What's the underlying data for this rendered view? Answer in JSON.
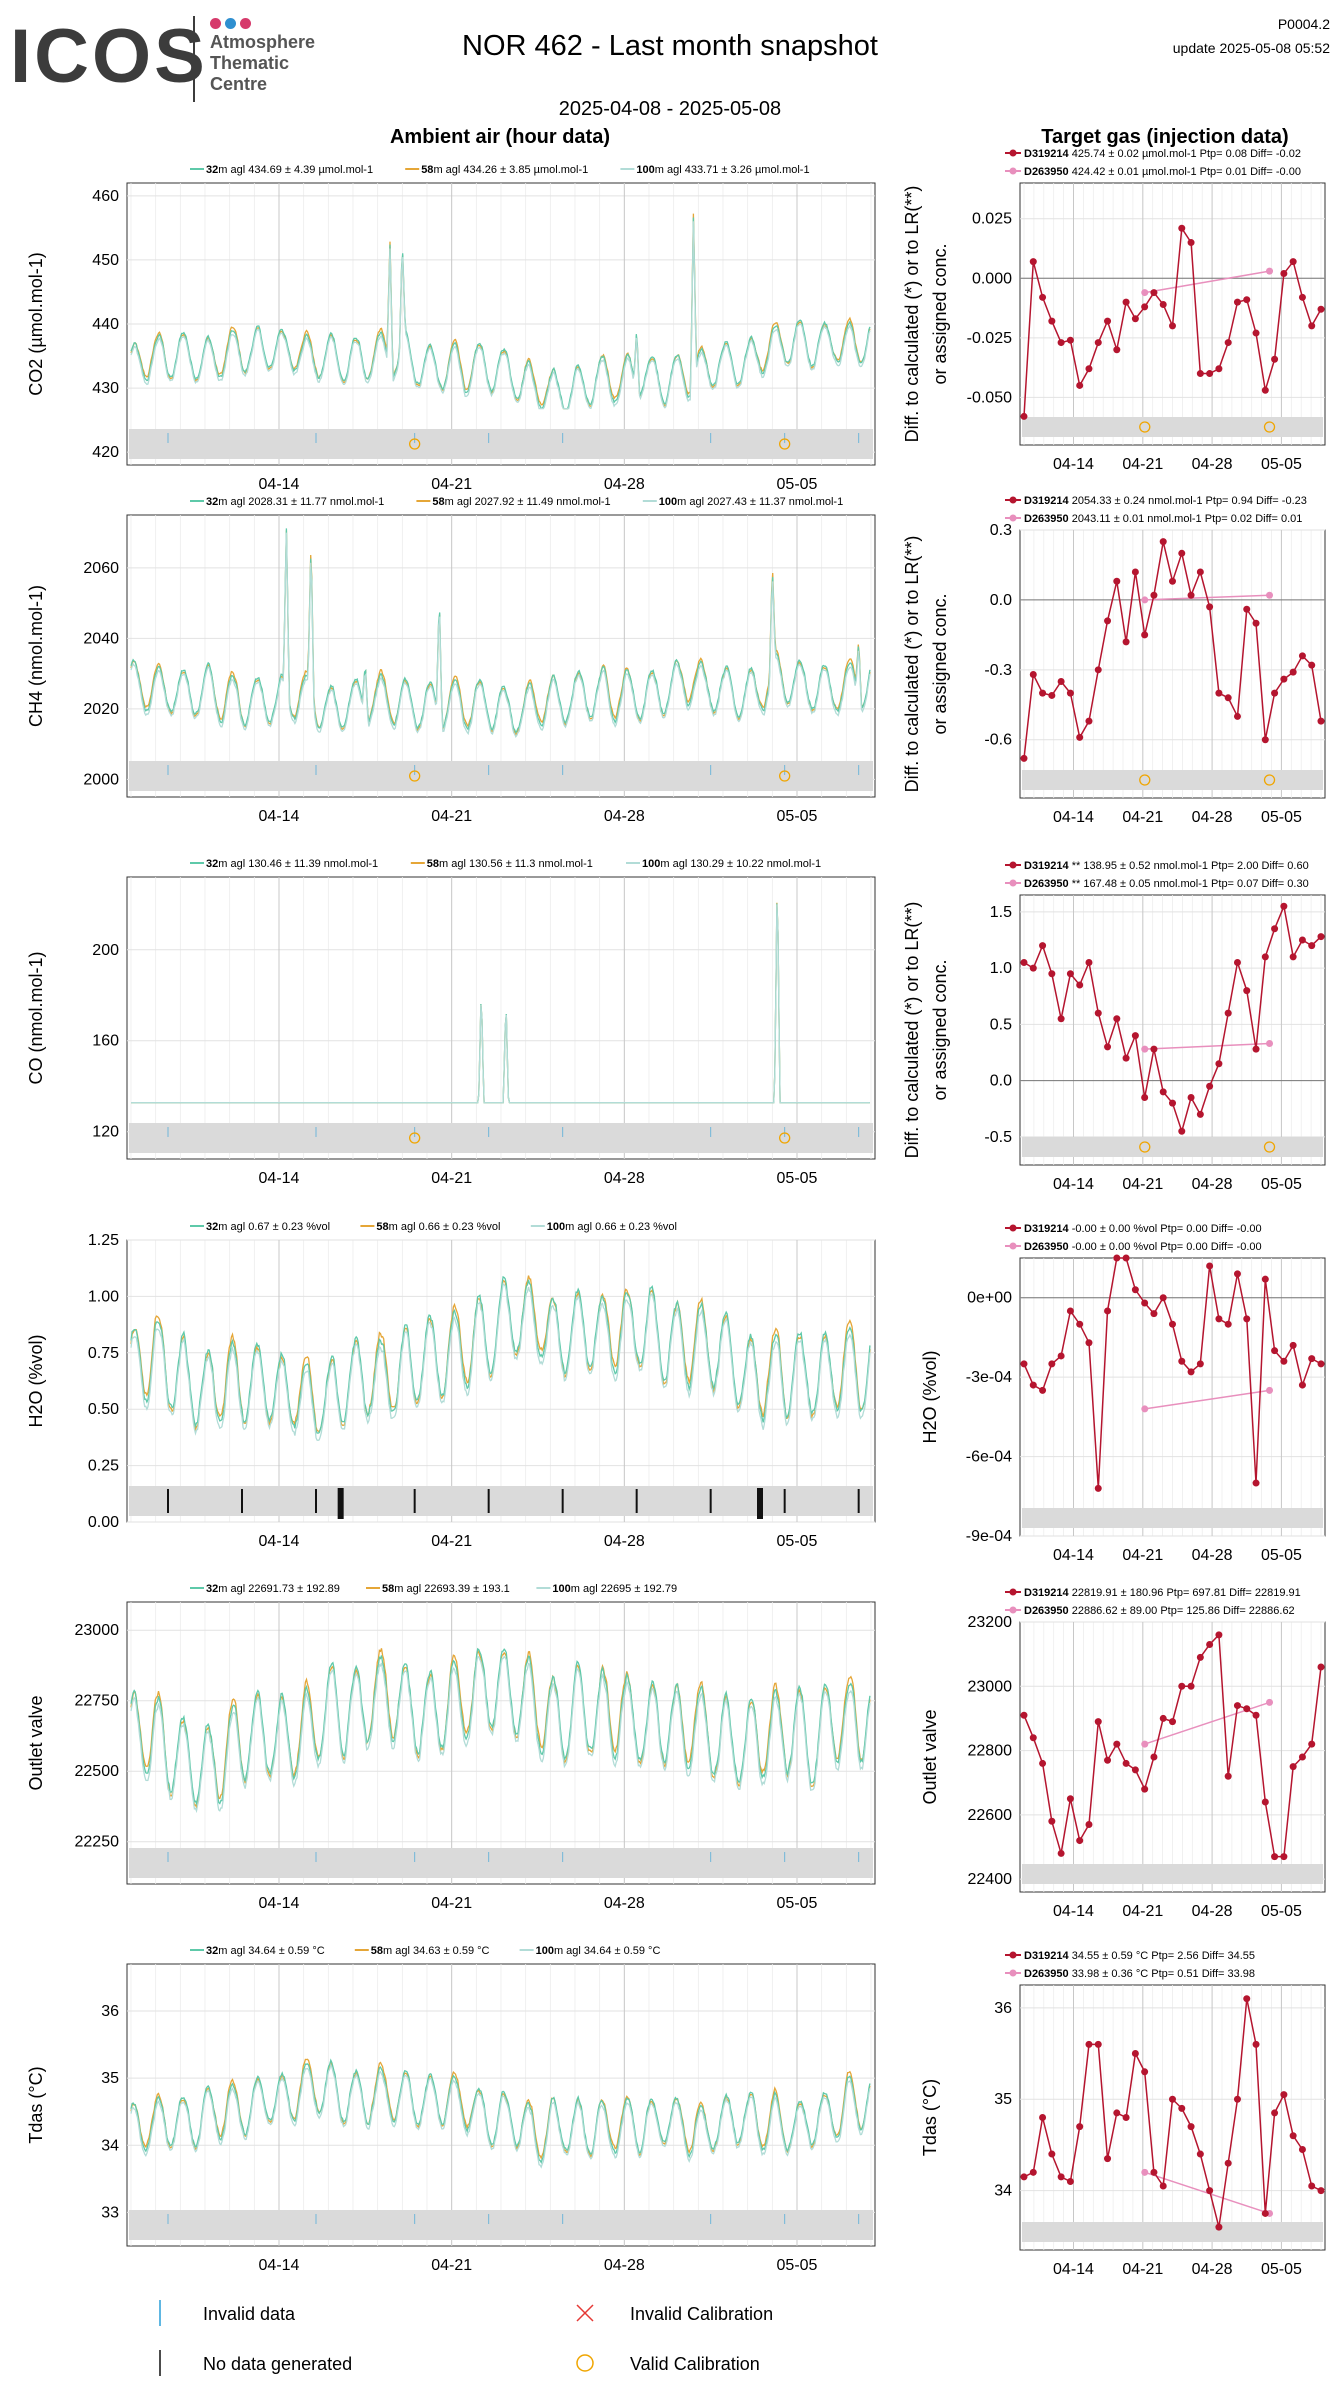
{
  "header": {
    "logo": {
      "word": "ICOS",
      "line1": "Atmosphere",
      "line2": "Thematic",
      "line3": "Centre",
      "dot_colors": [
        "#d63a6b",
        "#2e8fd0",
        "#d63a6b"
      ]
    },
    "title": "NOR 462 - Last month snapshot",
    "code": "P0004.2",
    "update": "update  2025-05-08 05:52",
    "date_range": "2025-04-08 - 2025-05-08",
    "left_section": "Ambient air (hour data)",
    "right_section": "Target gas (injection data)"
  },
  "colors": {
    "h32": "#5ec9a9",
    "h58": "#e5a637",
    "h100": "#b2dcd7",
    "tgt1": "#b5152f",
    "tgt2": "#e88fbd",
    "valid_cal": "#f0a500",
    "invalid": "#2a9fd8",
    "nodata": "#111111",
    "band": "#dadada"
  },
  "x_ticks": [
    "04-14",
    "04-21",
    "04-28",
    "05-05"
  ],
  "legend": {
    "invalid_data": "Invalid data",
    "no_data": "No data generated",
    "invalid_cal": "Invalid Calibration",
    "valid_cal": "Valid Calibration"
  },
  "chart_data": [
    {
      "type": "line",
      "ylabel": "CO2 (µmol.mol-1)",
      "ylim": [
        418,
        462
      ],
      "yticks": [
        "420",
        "430",
        "440",
        "450",
        "460"
      ],
      "legend": [
        {
          "h": "32",
          "t": "m agl 434.69 ± 4.39 µmol.mol-1"
        },
        {
          "h": "58",
          "t": "m agl 434.26 ± 3.85 µmol.mol-1"
        },
        {
          "h": "100",
          "t": "m agl 433.71 ± 3.26 µmol.mol-1"
        }
      ],
      "base": 433,
      "amp": 6,
      "spikes": [
        [
          10.5,
          19
        ],
        [
          11,
          15
        ],
        [
          20.5,
          10
        ],
        [
          22.8,
          26
        ]
      ],
      "valid_cal_days": [
        11.5,
        26.5
      ]
    },
    {
      "type": "line",
      "ylabel": "CH4 (nmol.mol-1)",
      "ylim": [
        1995,
        2075
      ],
      "yticks": [
        "2000",
        "2020",
        "2040",
        "2060"
      ],
      "legend": [
        {
          "h": "32",
          "t": "m agl 2028.31 ± 11.77 nmol.mol-1"
        },
        {
          "h": "58",
          "t": "m agl 2027.92 ± 11.49 nmol.mol-1"
        },
        {
          "h": "100",
          "t": "m agl 2027.43 ± 11.37 nmol.mol-1"
        }
      ],
      "base": 2024,
      "amp": 12,
      "spikes": [
        [
          6.3,
          45
        ],
        [
          7.3,
          40
        ],
        [
          9.5,
          15
        ],
        [
          12.5,
          35
        ],
        [
          26,
          28
        ],
        [
          29.5,
          18
        ]
      ],
      "valid_cal_days": [
        11.5,
        26.5
      ]
    },
    {
      "type": "line",
      "ylabel": "CO (nmol.mol-1)",
      "ylim": [
        108,
        232
      ],
      "yticks": [
        "120",
        "160",
        "200"
      ],
      "legend": [
        {
          "h": "32",
          "t": "m agl 130.46 ± 11.39 nmol.mol-1"
        },
        {
          "h": "58",
          "t": "m agl 130.56 ± 11.3 nmol.mol-1"
        },
        {
          "h": "100",
          "t": "m agl 130.29 ± 10.22 nmol.mol-1"
        }
      ],
      "base": 126,
      "amp": 4,
      "spikes": [
        [
          14.2,
          55
        ],
        [
          15.2,
          50
        ],
        [
          26.2,
          105
        ]
      ],
      "valid_cal_days": [
        11.5,
        26.5
      ]
    },
    {
      "type": "line",
      "ylabel": "H2O (%vol)",
      "ylim": [
        0,
        1.25
      ],
      "yticks": [
        "0.00",
        "0.25",
        "0.50",
        "0.75",
        "1.00",
        "1.25"
      ],
      "legend": [
        {
          "h": "32",
          "t": "m agl 0.67 ± 0.23 %vol"
        },
        {
          "h": "58",
          "t": "m agl 0.66 ± 0.23 %vol"
        },
        {
          "h": "100",
          "t": "m agl 0.66 ± 0.23 %vol"
        }
      ],
      "base": 0.65,
      "amp": 0.32,
      "spikes": [],
      "nodata_days": [
        1.5,
        4.5,
        7.5,
        11.5,
        14.5,
        17.5,
        20.5,
        23.5,
        26.5,
        29.5
      ]
    },
    {
      "type": "line",
      "ylabel": "Outlet valve",
      "ylim": [
        22100,
        23100
      ],
      "yticks": [
        "22250",
        "22500",
        "22750",
        "23000"
      ],
      "legend": [
        {
          "h": "32",
          "t": "m agl 22691.73 ± 192.89"
        },
        {
          "h": "58",
          "t": "m agl 22693.39 ± 193.1"
        },
        {
          "h": "100",
          "t": "m agl 22695 ± 192.79"
        }
      ],
      "base": 22690,
      "amp": 260,
      "spikes": []
    },
    {
      "type": "line",
      "ylabel": "Tdas (°C)",
      "ylim": [
        32.5,
        36.7
      ],
      "yticks": [
        "33",
        "34",
        "35",
        "36"
      ],
      "legend": [
        {
          "h": "32",
          "t": "m agl 34.64 ± 0.59 °C"
        },
        {
          "h": "58",
          "t": "m agl 34.63 ± 0.59 °C"
        },
        {
          "h": "100",
          "t": "m agl 34.64 ± 0.59 °C"
        }
      ],
      "base": 34.5,
      "amp": 0.7,
      "spikes": []
    }
  ],
  "target_data": [
    {
      "type": "line",
      "ylabel1": "Diff. to calculated (*) or to LR(**)",
      "ylabel2": "or assigned conc.",
      "ylim": [
        -0.07,
        0.04
      ],
      "yticks": [
        "-0.050",
        "-0.025",
        "0.000",
        "0.025"
      ],
      "zero": 0,
      "legend": [
        {
          "id": "D319214",
          "t": "425.74 ± 0.02 µmol.mol-1 Ptp= 0.08 Diff= -0.02"
        },
        {
          "id": "D263950",
          "t": "424.42 ± 0.01 µmol.mol-1 Ptp= 0.01 Diff= -0.00"
        }
      ],
      "s1": [
        -0.058,
        0.007,
        -0.008,
        -0.018,
        -0.027,
        -0.026,
        -0.045,
        -0.038,
        -0.027,
        -0.018,
        -0.03,
        -0.01,
        -0.017,
        -0.012,
        -0.006,
        -0.011,
        -0.02,
        0.021,
        0.015,
        -0.04,
        -0.04,
        -0.038,
        -0.027,
        -0.01,
        -0.009,
        -0.023,
        -0.047,
        -0.034,
        0.002,
        0.007,
        -0.008,
        -0.02,
        -0.013
      ],
      "s2": [
        [
          13.2,
          -0.006
        ],
        [
          25.8,
          0.003
        ]
      ],
      "valid_cal_days": [
        13.2,
        25.8
      ]
    },
    {
      "type": "line",
      "ylabel1": "Diff. to calculated (*) or to LR(**)",
      "ylabel2": "or assigned conc.",
      "ylim": [
        -0.85,
        0.3
      ],
      "yticks": [
        "-0.6",
        "-0.3",
        "0.0",
        "0.3"
      ],
      "zero": 0,
      "legend": [
        {
          "id": "D319214",
          "t": "2054.33 ± 0.24 nmol.mol-1 Ptp= 0.94 Diff= -0.23"
        },
        {
          "id": "D263950",
          "t": "2043.11 ± 0.01 nmol.mol-1 Ptp= 0.02 Diff= 0.01"
        }
      ],
      "s1": [
        -0.68,
        -0.32,
        -0.4,
        -0.41,
        -0.35,
        -0.4,
        -0.59,
        -0.52,
        -0.3,
        -0.09,
        0.08,
        -0.18,
        0.12,
        -0.15,
        0.02,
        0.25,
        0.08,
        0.2,
        0.02,
        0.12,
        -0.03,
        -0.4,
        -0.42,
        -0.5,
        -0.04,
        -0.1,
        -0.6,
        -0.4,
        -0.34,
        -0.31,
        -0.24,
        -0.28,
        -0.52
      ],
      "s2": [
        [
          13.2,
          0.0
        ],
        [
          25.8,
          0.02
        ]
      ],
      "valid_cal_days": [
        13.2,
        25.8
      ]
    },
    {
      "type": "line",
      "ylabel1": "Diff. to calculated (*) or to LR(**)",
      "ylabel2": "or assigned conc.",
      "ylim": [
        -0.75,
        1.65
      ],
      "yticks": [
        "-0.5",
        "0.0",
        "0.5",
        "1.0",
        "1.5"
      ],
      "zero": 0,
      "legend": [
        {
          "id": "D319214",
          "t": "** 138.95 ± 0.52 nmol.mol-1 Ptp= 2.00 Diff= 0.60"
        },
        {
          "id": "D263950",
          "t": "** 167.48 ± 0.05 nmol.mol-1 Ptp= 0.07 Diff= 0.30"
        }
      ],
      "s1": [
        1.05,
        1.0,
        1.2,
        0.95,
        0.55,
        0.95,
        0.85,
        1.05,
        0.6,
        0.3,
        0.55,
        0.2,
        0.4,
        -0.15,
        0.28,
        -0.1,
        -0.2,
        -0.45,
        -0.15,
        -0.3,
        -0.05,
        0.15,
        0.6,
        1.05,
        0.8,
        0.28,
        1.1,
        1.35,
        1.55,
        1.1,
        1.25,
        1.2,
        1.28
      ],
      "s2": [
        [
          13.2,
          0.28
        ],
        [
          25.8,
          0.33
        ]
      ],
      "valid_cal_days": [
        13.2,
        25.8
      ]
    },
    {
      "type": "line",
      "ylabel1": "H2O (%vol)",
      "ylabel2": "",
      "ylim": [
        -0.0009,
        0.00015
      ],
      "yticks": [
        "-9e-04",
        "-6e-04",
        "-3e-04",
        "0e+00"
      ],
      "zero": 0,
      "legend": [
        {
          "id": "D319214",
          "t": "-0.00 ± 0.00 %vol Ptp= 0.00 Diff= -0.00"
        },
        {
          "id": "D263950",
          "t": "-0.00 ± 0.00 %vol Ptp= 0.00 Diff= -0.00"
        }
      ],
      "s1": [
        -0.00025,
        -0.00033,
        -0.00035,
        -0.00025,
        -0.00022,
        -5e-05,
        -0.0001,
        -0.00017,
        -0.00072,
        -5e-05,
        0.00015,
        0.00015,
        3e-05,
        -2e-05,
        -6e-05,
        0.0,
        -0.0001,
        -0.00024,
        -0.00028,
        -0.00025,
        0.00012,
        -8e-05,
        -0.0001,
        9e-05,
        -8e-05,
        -0.0007,
        7e-05,
        -0.0002,
        -0.00024,
        -0.00018,
        -0.00033,
        -0.00023,
        -0.00025
      ],
      "s2": [
        [
          13.2,
          -0.00042
        ],
        [
          25.8,
          -0.00035
        ]
      ]
    },
    {
      "type": "line",
      "ylabel1": "Outlet valve",
      "ylabel2": "",
      "ylim": [
        22360,
        23200
      ],
      "yticks": [
        "22400",
        "22600",
        "22800",
        "23000",
        "23200"
      ],
      "legend": [
        {
          "id": "D319214",
          "t": "22819.91 ± 180.96  Ptp= 697.81 Diff= 22819.91"
        },
        {
          "id": "D263950",
          "t": "22886.62 ± 89.00  Ptp= 125.86 Diff= 22886.62"
        }
      ],
      "s1": [
        22910,
        22840,
        22760,
        22580,
        22480,
        22650,
        22520,
        22570,
        22890,
        22770,
        22820,
        22760,
        22740,
        22680,
        22780,
        22900,
        22890,
        23000,
        23000,
        23090,
        23130,
        23160,
        22720,
        22940,
        22930,
        22910,
        22640,
        22470,
        22470,
        22750,
        22780,
        22820,
        23060
      ],
      "s2": [
        [
          13.2,
          22820
        ],
        [
          25.8,
          22950
        ]
      ]
    },
    {
      "type": "line",
      "ylabel1": "Tdas (°C)",
      "ylabel2": "",
      "ylim": [
        33.35,
        36.25
      ],
      "yticks": [
        "34",
        "35",
        "36"
      ],
      "legend": [
        {
          "id": "D319214",
          "t": "34.55 ± 0.59 °C Ptp= 2.56 Diff= 34.55"
        },
        {
          "id": "D263950",
          "t": "33.98 ± 0.36 °C Ptp= 0.51 Diff= 33.98"
        }
      ],
      "s1": [
        34.15,
        34.2,
        34.8,
        34.4,
        34.15,
        34.1,
        34.7,
        35.6,
        35.6,
        34.35,
        34.85,
        34.8,
        35.5,
        35.3,
        34.2,
        34.05,
        35.0,
        34.9,
        34.7,
        34.4,
        34.0,
        33.6,
        34.3,
        35.0,
        36.1,
        35.6,
        33.75,
        34.85,
        35.05,
        34.6,
        34.45,
        34.05,
        34.0
      ],
      "s2": [
        [
          13.2,
          34.2
        ],
        [
          25.8,
          33.75
        ]
      ]
    }
  ]
}
